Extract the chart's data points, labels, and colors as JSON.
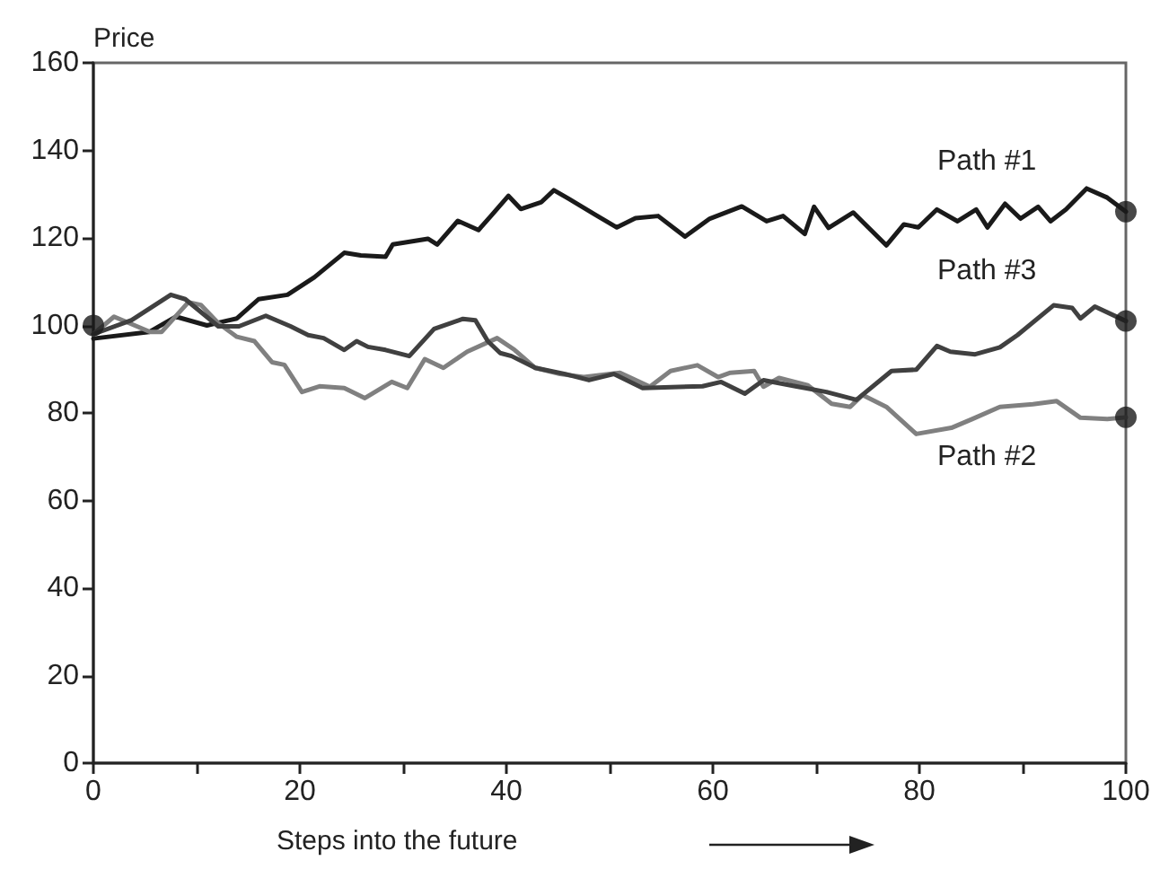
{
  "chart_data": {
    "type": "line",
    "ylabel": "Price",
    "xlabel": "Steps into the future",
    "xlim": [
      0,
      100
    ],
    "ylim": [
      0,
      160
    ],
    "xticks": [
      0,
      {
        "value": 10,
        "label": null
      },
      20,
      {
        "value": 30,
        "label": null
      },
      40,
      {
        "value": 50,
        "label": null
      },
      60,
      {
        "value": 70,
        "label": null
      },
      80,
      {
        "value": 90,
        "label": null
      },
      100
    ],
    "yticks": [
      0,
      20,
      40,
      60,
      80,
      100,
      120,
      140,
      160
    ],
    "grid": false,
    "legend": false,
    "marker": "none",
    "line_style": "solid",
    "series": [
      {
        "name": "Path #1",
        "color": "#1a1a1a",
        "x": [
          0,
          5.4,
          8,
          11,
          13.9,
          16,
          18.8,
          21.4,
          24.3,
          25.9,
          28.3,
          29,
          32.4,
          33.3,
          35.3,
          37.3,
          38.5,
          40.2,
          41.4,
          43.4,
          44.6,
          46,
          48.6,
          50.7,
          52.5,
          54.7,
          57.3,
          59.7,
          62.8,
          65.2,
          66.8,
          68.9,
          69.8,
          71.2,
          73.6,
          76.8,
          78.5,
          79.9,
          81.7,
          83.7,
          85.5,
          86.6,
          88.3,
          89.8,
          91.5,
          92.7,
          94.2,
          96.2,
          98.2,
          100
        ],
        "values": [
          97,
          98.5,
          102,
          100,
          101.6,
          106,
          107,
          111,
          116.6,
          116,
          115.7,
          118.5,
          119.8,
          118.5,
          123.9,
          121.8,
          125,
          129.6,
          126.6,
          128.2,
          130.9,
          129,
          125.3,
          122.4,
          124.5,
          125,
          120.3,
          124.4,
          127.2,
          123.8,
          125,
          120.9,
          127.1,
          122.3,
          125.8,
          118.3,
          123.1,
          122.4,
          126.5,
          123.8,
          126.5,
          122.4,
          127.8,
          124.4,
          127.1,
          123.8,
          126.5,
          131.3,
          129.2,
          126
        ]
      },
      {
        "name": "Path #2",
        "color": "#808080",
        "x": [
          0,
          2,
          5.5,
          6.6,
          9.2,
          10.4,
          12.1,
          13.9,
          15.6,
          17.3,
          18.5,
          20.2,
          21.9,
          24.3,
          26.3,
          28.9,
          30.4,
          32.1,
          33.9,
          36.2,
          39.1,
          40.8,
          42.8,
          45.2,
          47.5,
          51,
          53.9,
          55.9,
          58.5,
          60.5,
          61.7,
          64,
          64.9,
          66.4,
          69.2,
          71.5,
          73.3,
          74.5,
          76.8,
          79.7,
          83.1,
          85.1,
          87.8,
          91,
          93.3,
          95.6,
          98.2,
          100
        ],
        "values": [
          98,
          102,
          98.5,
          98.5,
          105.3,
          104.7,
          100.5,
          97.4,
          96.4,
          91.6,
          91,
          84.8,
          86.1,
          85.7,
          83.4,
          87.1,
          85.7,
          92.3,
          90.3,
          94,
          97.1,
          94.4,
          90.3,
          88.9,
          88.2,
          89.2,
          86,
          89.6,
          90.9,
          88.2,
          89.2,
          89.6,
          86,
          88,
          86.3,
          82.1,
          81.4,
          84.1,
          81.4,
          75.2,
          76.6,
          78.6,
          81.4,
          82,
          82.7,
          78.9,
          78.6,
          79
        ]
      },
      {
        "name": "Path #3",
        "color": "#404040",
        "x": [
          0,
          3.7,
          7.5,
          8.9,
          12.1,
          14.1,
          16.7,
          19.1,
          20.8,
          22.3,
          24.3,
          25.5,
          26.6,
          28.3,
          30.6,
          33,
          35.8,
          37,
          38.2,
          39.4,
          40.5,
          42.8,
          45.7,
          48,
          50.4,
          53.2,
          59,
          60.8,
          63.1,
          64.9,
          68,
          71,
          73.9,
          77.3,
          79.7,
          81.7,
          83,
          85.4,
          87.8,
          89.5,
          93,
          94.8,
          95.6,
          97,
          100
        ],
        "values": [
          98,
          101.2,
          107,
          106,
          99.8,
          99.8,
          102.2,
          99.8,
          97.8,
          97.1,
          94.4,
          96.4,
          95.1,
          94.4,
          93,
          99.2,
          101.5,
          101.2,
          96.4,
          93.7,
          93,
          90.3,
          88.9,
          87.5,
          88.9,
          85.7,
          86.1,
          87.1,
          84.4,
          87.5,
          86.1,
          84.8,
          83,
          89.6,
          89.9,
          95.3,
          94,
          93.4,
          95,
          97.8,
          104.6,
          104,
          101.6,
          104.3,
          101
        ]
      },
      {
        "type": "scatter",
        "color": "#1a1a1a",
        "marker": "circle",
        "x": [
          0,
          100,
          100,
          100
        ],
        "values": [
          100,
          126,
          79,
          101
        ]
      }
    ]
  }
}
